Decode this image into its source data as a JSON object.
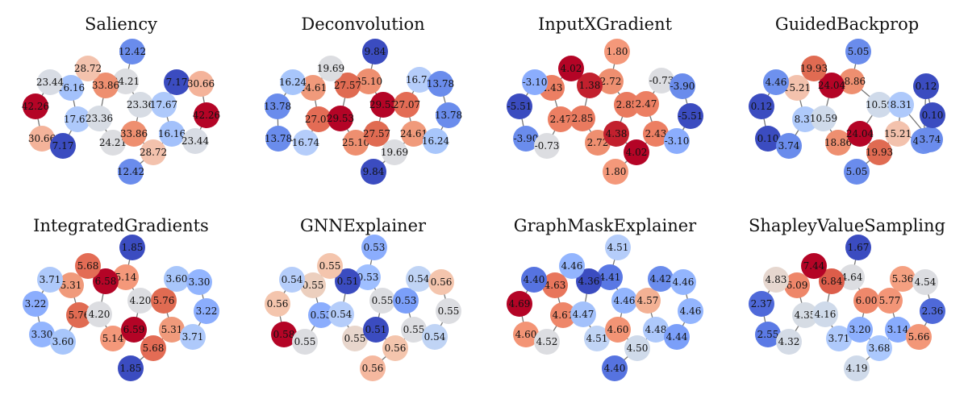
{
  "panels": [
    {
      "title": "Saliency",
      "nodes": [
        {
          "v": "12.42",
          "c": "#6a8cec"
        },
        {
          "v": "24.21",
          "c": "#dcdde1"
        },
        {
          "v": "33.86",
          "c": "#ee8f70"
        },
        {
          "v": "28.72",
          "c": "#f3c2ad"
        },
        {
          "v": "16.16",
          "c": "#a3c1fb"
        },
        {
          "v": "23.44",
          "c": "#d8dce4"
        },
        {
          "v": "42.26",
          "c": "#b40426"
        },
        {
          "v": "30.66",
          "c": "#f4b39a"
        },
        {
          "v": "7.17",
          "c": "#3b4cc0"
        },
        {
          "v": "17.67",
          "c": "#aec9fb"
        },
        {
          "v": "23.36",
          "c": "#d7dce4"
        },
        {
          "v": "23.36",
          "c": "#d7dce4"
        },
        {
          "v": "17.67",
          "c": "#aec9fb"
        },
        {
          "v": "24.21",
          "c": "#dcdde1"
        },
        {
          "v": "33.86",
          "c": "#ee8f70"
        },
        {
          "v": "28.72",
          "c": "#f3c2ad"
        },
        {
          "v": "16.16",
          "c": "#a3c1fb"
        },
        {
          "v": "23.44",
          "c": "#d8dce4"
        },
        {
          "v": "12.42",
          "c": "#6a8cec"
        },
        {
          "v": "7.17",
          "c": "#3b4cc0"
        },
        {
          "v": "30.66",
          "c": "#f4b39a"
        },
        {
          "v": "42.26",
          "c": "#b40426"
        }
      ]
    },
    {
      "title": "Deconvolution",
      "nodes": [
        {
          "v": "9.84",
          "c": "#3b4cc0"
        },
        {
          "v": "25.10",
          "c": "#ee8f70"
        },
        {
          "v": "27.57",
          "c": "#e06b52"
        },
        {
          "v": "19.69",
          "c": "#dcdde1"
        },
        {
          "v": "24.61",
          "c": "#f09a7b"
        },
        {
          "v": "16.24",
          "c": "#a8c6fb"
        },
        {
          "v": "13.78",
          "c": "#6a8cec"
        },
        {
          "v": "13.78",
          "c": "#6a8cec"
        },
        {
          "v": "16.74",
          "c": "#b5cdfa"
        },
        {
          "v": "27.07",
          "c": "#e36c55"
        },
        {
          "v": "29.53",
          "c": "#b40426"
        },
        {
          "v": "29.53",
          "c": "#b40426"
        },
        {
          "v": "27.07",
          "c": "#e36c55"
        },
        {
          "v": "25.10",
          "c": "#ee8f70"
        },
        {
          "v": "27.57",
          "c": "#e06b52"
        },
        {
          "v": "19.69",
          "c": "#dcdde1"
        },
        {
          "v": "24.61",
          "c": "#f09a7b"
        },
        {
          "v": "16.24",
          "c": "#a8c6fb"
        },
        {
          "v": "9.84",
          "c": "#3b4cc0"
        },
        {
          "v": "16.74",
          "c": "#b5cdfa"
        },
        {
          "v": "13.78",
          "c": "#6a8cec"
        },
        {
          "v": "13.78",
          "c": "#6a8cec"
        }
      ]
    },
    {
      "title": "InputXGradient",
      "nodes": [
        {
          "v": "1.80",
          "c": "#f4987a"
        },
        {
          "v": "2.72",
          "c": "#ee8f70"
        },
        {
          "v": "1.38",
          "c": "#c2202e"
        },
        {
          "v": "4.02",
          "c": "#b40426"
        },
        {
          "v": "2.43",
          "c": "#ec7f63"
        },
        {
          "v": "-3.10",
          "c": "#8badfd"
        },
        {
          "v": "-5.51",
          "c": "#3b4cc0"
        },
        {
          "v": "-3.90",
          "c": "#6a8cec"
        },
        {
          "v": "-0.73",
          "c": "#dcdde1"
        },
        {
          "v": "2.47",
          "c": "#ec7f63"
        },
        {
          "v": "2.85",
          "c": "#e97a5f"
        },
        {
          "v": "2.85",
          "c": "#e97a5f"
        },
        {
          "v": "2.47",
          "c": "#ec7f63"
        },
        {
          "v": "2.72",
          "c": "#ee8f70"
        },
        {
          "v": "4.38",
          "c": "#c2202e"
        },
        {
          "v": "4.02",
          "c": "#b40426"
        },
        {
          "v": "2.43",
          "c": "#ec7f63"
        },
        {
          "v": "-3.10",
          "c": "#8badfd"
        },
        {
          "v": "1.80",
          "c": "#f4987a"
        },
        {
          "v": "-0.73",
          "c": "#dcdde1"
        },
        {
          "v": "-3.90",
          "c": "#6a8cec"
        },
        {
          "v": "-5.51",
          "c": "#3b4cc0"
        }
      ]
    },
    {
      "title": "GuidedBackprop",
      "nodes": [
        {
          "v": "5.05",
          "c": "#6a8cec"
        },
        {
          "v": "18.86",
          "c": "#ee8f70"
        },
        {
          "v": "24.04",
          "c": "#b40426"
        },
        {
          "v": "19.93",
          "c": "#e06b52"
        },
        {
          "v": "15.21",
          "c": "#f3c2ad"
        },
        {
          "v": "4.46",
          "c": "#6e91ee"
        },
        {
          "v": "0.12",
          "c": "#3b4cc0"
        },
        {
          "v": "0.10",
          "c": "#3b4cc0"
        },
        {
          "v": "3.74",
          "c": "#6a8cec"
        },
        {
          "v": "8.31",
          "c": "#aec9fb"
        },
        {
          "v": "10.59",
          "c": "#cfdaea"
        },
        {
          "v": "10.59",
          "c": "#cfdaea"
        },
        {
          "v": "8.31",
          "c": "#aec9fb"
        },
        {
          "v": "18.86",
          "c": "#ee8f70"
        },
        {
          "v": "24.04",
          "c": "#b40426"
        },
        {
          "v": "19.93",
          "c": "#e06b52"
        },
        {
          "v": "15.21",
          "c": "#f3c2ad"
        },
        {
          "v": "4.46",
          "c": "#6e91ee"
        },
        {
          "v": "5.05",
          "c": "#6a8cec"
        },
        {
          "v": "3.74",
          "c": "#6a8cec"
        },
        {
          "v": "0.10",
          "c": "#3b4cc0"
        },
        {
          "v": "0.12",
          "c": "#3b4cc0"
        }
      ]
    },
    {
      "title": "IntegratedGradients",
      "nodes": [
        {
          "v": "1.85",
          "c": "#3b4cc0"
        },
        {
          "v": "5.14",
          "c": "#f4987a"
        },
        {
          "v": "6.58",
          "c": "#b40426"
        },
        {
          "v": "5.68",
          "c": "#e36c55"
        },
        {
          "v": "5.31",
          "c": "#f09a7b"
        },
        {
          "v": "3.71",
          "c": "#aec9fb"
        },
        {
          "v": "3.22",
          "c": "#8badfd"
        },
        {
          "v": "3.30",
          "c": "#93b5fe"
        },
        {
          "v": "3.60",
          "c": "#a8c6fb"
        },
        {
          "v": "5.76",
          "c": "#e06b52"
        },
        {
          "v": "4.20",
          "c": "#dcdde1"
        },
        {
          "v": "4.20",
          "c": "#dcdde1"
        },
        {
          "v": "5.76",
          "c": "#e06b52"
        },
        {
          "v": "5.14",
          "c": "#f4987a"
        },
        {
          "v": "6.59",
          "c": "#b40426"
        },
        {
          "v": "5.68",
          "c": "#e36c55"
        },
        {
          "v": "5.31",
          "c": "#f09a7b"
        },
        {
          "v": "3.71",
          "c": "#aec9fb"
        },
        {
          "v": "1.85",
          "c": "#3b4cc0"
        },
        {
          "v": "3.60",
          "c": "#a8c6fb"
        },
        {
          "v": "3.30",
          "c": "#93b5fe"
        },
        {
          "v": "3.22",
          "c": "#8badfd"
        }
      ]
    },
    {
      "title": "GNNExplainer",
      "nodes": [
        {
          "v": "0.53",
          "c": "#8badfd"
        },
        {
          "v": "0.53",
          "c": "#9fbfff"
        },
        {
          "v": "0.51",
          "c": "#3b4cc0"
        },
        {
          "v": "0.55",
          "c": "#f4c5ad"
        },
        {
          "v": "0.55",
          "c": "#eccfbe"
        },
        {
          "v": "0.54",
          "c": "#b5cdfa"
        },
        {
          "v": "0.56",
          "c": "#f4c5ad"
        },
        {
          "v": "0.58",
          "c": "#b40426"
        },
        {
          "v": "0.55",
          "c": "#dcdde1"
        },
        {
          "v": "0.53",
          "c": "#8badfd"
        },
        {
          "v": "0.54",
          "c": "#b5cdfa"
        },
        {
          "v": "0.55",
          "c": "#dcdde1"
        },
        {
          "v": "0.53",
          "c": "#7b9ff9"
        },
        {
          "v": "0.55",
          "c": "#e8d6cc"
        },
        {
          "v": "0.51",
          "c": "#3b4cc0"
        },
        {
          "v": "0.56",
          "c": "#f4c5ad"
        },
        {
          "v": "0.55",
          "c": "#dcdde1"
        },
        {
          "v": "0.54",
          "c": "#c0d4f5"
        },
        {
          "v": "0.56",
          "c": "#f5b89f"
        },
        {
          "v": "0.54",
          "c": "#c0d4f5"
        },
        {
          "v": "0.56",
          "c": "#f4c5ad"
        },
        {
          "v": "0.55",
          "c": "#dcdde1"
        }
      ]
    },
    {
      "title": "GraphMaskExplainer",
      "nodes": [
        {
          "v": "4.51",
          "c": "#b5cdfa"
        },
        {
          "v": "4.41",
          "c": "#5a78e4"
        },
        {
          "v": "4.36",
          "c": "#3b4cc0"
        },
        {
          "v": "4.46",
          "c": "#93b5fe"
        },
        {
          "v": "4.63",
          "c": "#e8765c"
        },
        {
          "v": "4.40",
          "c": "#5673e0"
        },
        {
          "v": "4.69",
          "c": "#b40426"
        },
        {
          "v": "4.60",
          "c": "#f39475"
        },
        {
          "v": "4.52",
          "c": "#dcdde1"
        },
        {
          "v": "4.61",
          "c": "#ee8669"
        },
        {
          "v": "4.47",
          "c": "#a3c1fb"
        },
        {
          "v": "4.46",
          "c": "#93b5fe"
        },
        {
          "v": "4.57",
          "c": "#f3b194"
        },
        {
          "v": "4.51",
          "c": "#c0d4f5"
        },
        {
          "v": "4.60",
          "c": "#f39475"
        },
        {
          "v": "4.50",
          "c": "#cfdaea"
        },
        {
          "v": "4.48",
          "c": "#aec9fb"
        },
        {
          "v": "4.44",
          "c": "#7b9ff9"
        },
        {
          "v": "4.40",
          "c": "#5673e0"
        },
        {
          "v": "4.42",
          "c": "#6a8cec"
        },
        {
          "v": "4.46",
          "c": "#93b5fe"
        },
        {
          "v": "4.46",
          "c": "#93b5fe"
        }
      ]
    },
    {
      "title": "ShapleyValueSampling",
      "nodes": [
        {
          "v": "1.67",
          "c": "#3b4cc0"
        },
        {
          "v": "4.64",
          "c": "#dcdde1"
        },
        {
          "v": "6.84",
          "c": "#dc5d4a"
        },
        {
          "v": "7.44",
          "c": "#b40426"
        },
        {
          "v": "6.09",
          "c": "#ee8669"
        },
        {
          "v": "4.83",
          "c": "#e6d7cf"
        },
        {
          "v": "2.37",
          "c": "#4f69d9"
        },
        {
          "v": "2.55",
          "c": "#5b7ae5"
        },
        {
          "v": "4.32",
          "c": "#d4dbe6"
        },
        {
          "v": "4.35",
          "c": "#d6dce4"
        },
        {
          "v": "4.16",
          "c": "#cfdaea"
        },
        {
          "v": "6.00",
          "c": "#ef886b"
        },
        {
          "v": "5.77",
          "c": "#f39577"
        },
        {
          "v": "3.71",
          "c": "#aec9fb"
        },
        {
          "v": "3.20",
          "c": "#8caffe"
        },
        {
          "v": "3.68",
          "c": "#abc8fd"
        },
        {
          "v": "3.14",
          "c": "#88abfd"
        },
        {
          "v": "5.66",
          "c": "#f39778"
        },
        {
          "v": "4.19",
          "c": "#cfdaea"
        },
        {
          "v": "5.36",
          "c": "#f5a081"
        },
        {
          "v": "4.54",
          "c": "#dcdde1"
        },
        {
          "v": "2.36",
          "c": "#4f69d9"
        }
      ]
    }
  ]
}
